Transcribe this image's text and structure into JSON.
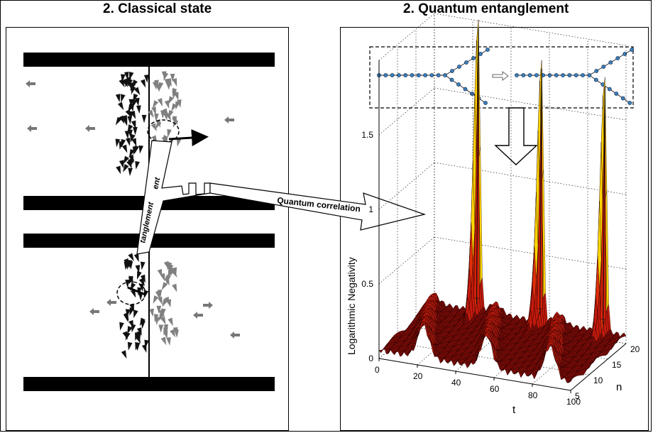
{
  "titles": {
    "left": "2. Classical state",
    "right": "2. Quantum entanglement"
  },
  "labels": {
    "entanglement_fragment_1": "ent",
    "entanglement_fragment_2": "tanglement",
    "quantum_correlation": "Quantum correlation"
  },
  "chart_data": {
    "type": "surface",
    "zlabel": "Logarithmic Negativity",
    "xlabel": "t",
    "ylabel": "n",
    "t_ticks": [
      "0",
      "20",
      "40",
      "60",
      "80",
      "100"
    ],
    "n_ticks": [
      "5",
      "10",
      "15",
      "20"
    ],
    "z_ticks": [
      "0",
      "0.5",
      "1",
      "1.5"
    ],
    "xlim": [
      0,
      100
    ],
    "ylim": [
      5,
      20
    ],
    "zlim": [
      0,
      2
    ],
    "peaks": [
      {
        "t": 23,
        "value": 1.95
      },
      {
        "t": 56,
        "value": 1.75
      },
      {
        "t": 89,
        "value": 1.7
      }
    ],
    "colors": {
      "surface": "#b0120a",
      "mesh": "#1a0000",
      "peak_glow": "#ffe000"
    }
  },
  "colors": {
    "dark_bird": "#111111",
    "light_bird": "#808080",
    "bar": "#000000"
  }
}
